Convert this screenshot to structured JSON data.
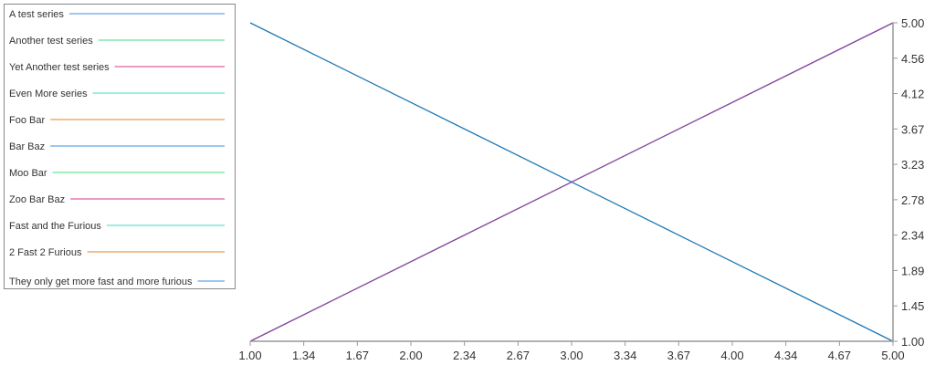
{
  "chart_data": {
    "type": "line",
    "xlim": [
      1.0,
      5.0
    ],
    "ylim": [
      1.0,
      5.0
    ],
    "x_ticks": [
      "1.00",
      "1.34",
      "1.67",
      "2.00",
      "2.34",
      "2.67",
      "3.00",
      "3.34",
      "3.67",
      "4.00",
      "4.34",
      "4.67",
      "5.00"
    ],
    "y_ticks": [
      "1.00",
      "1.45",
      "1.89",
      "2.34",
      "2.78",
      "3.23",
      "3.67",
      "4.12",
      "4.56",
      "5.00"
    ],
    "y_axis_side": "right",
    "grid": false,
    "legend_placement": "top-left",
    "legend": [
      {
        "name": "A test series",
        "color": "#7cb5ec"
      },
      {
        "name": "Another test series",
        "color": "#7ee8a8"
      },
      {
        "name": "Yet Another test series",
        "color": "#e878b4"
      },
      {
        "name": "Even More series",
        "color": "#7de8e0"
      },
      {
        "name": "Foo Bar",
        "color": "#eeaa70"
      },
      {
        "name": "Bar Baz",
        "color": "#7cb5ec"
      },
      {
        "name": "Moo Bar",
        "color": "#7ee8a8"
      },
      {
        "name": "Zoo Bar Baz",
        "color": "#e878b4"
      },
      {
        "name": "Fast and the Furious",
        "color": "#7de8e0"
      },
      {
        "name": "2 Fast 2 Furious",
        "color": "#eeaa70"
      },
      {
        "name": "They only get more fast and more furious",
        "color": "#7cb5ec"
      }
    ],
    "lines": [
      {
        "x": [
          1.0,
          5.0
        ],
        "y": [
          5.0,
          1.0
        ],
        "color": "#1f77b4"
      },
      {
        "x": [
          1.0,
          5.0
        ],
        "y": [
          1.0,
          5.0
        ],
        "color": "#1f77b4"
      },
      {
        "x": [
          1.0,
          5.0
        ],
        "y": [
          1.0,
          5.0
        ],
        "color": "#d62790"
      }
    ]
  }
}
